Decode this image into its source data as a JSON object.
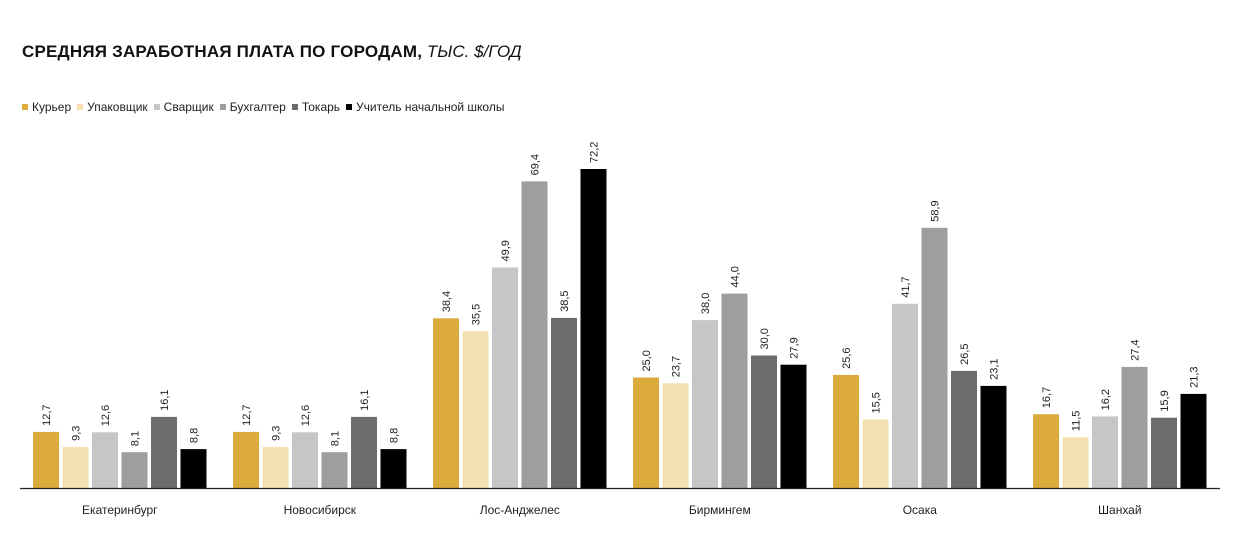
{
  "chart_data": {
    "type": "bar",
    "title": "СРЕДНЯЯ ЗАРАБОТНАЯ ПЛАТА ПО ГОРОДАМ,",
    "subtitle": "ТЫС. $/ГОД",
    "xlabel": "",
    "ylabel": "",
    "ylim": [
      0,
      72.2
    ],
    "grid": false,
    "legend_position": "top-left",
    "categories": [
      "Екатеринбург",
      "Новосибирск",
      "Лос-Анджелес",
      "Бирмингем",
      "Осака",
      "Шанхай"
    ],
    "series": [
      {
        "name": "Курьер",
        "color": "#dbab3e",
        "values": [
          12.7,
          12.7,
          38.4,
          25.0,
          25.6,
          16.7
        ],
        "labels": [
          "12,7",
          "12,7",
          "38,4",
          "25,0",
          "25,6",
          "16,7"
        ]
      },
      {
        "name": "Упаковщик",
        "color": "#f5e0b2",
        "values": [
          9.3,
          9.3,
          35.5,
          23.7,
          15.5,
          11.5
        ],
        "labels": [
          "9,3",
          "9,3",
          "35,5",
          "23,7",
          "15,5",
          "11,5"
        ]
      },
      {
        "name": "Сварщик",
        "color": "#c6c6c6",
        "values": [
          12.6,
          12.6,
          49.9,
          38.0,
          41.7,
          16.2
        ],
        "labels": [
          "12,6",
          "12,6",
          "49,9",
          "38,0",
          "41,7",
          "16,2"
        ]
      },
      {
        "name": "Бухгалтер",
        "color": "#9e9e9e",
        "values": [
          8.1,
          8.1,
          69.4,
          44.0,
          58.9,
          27.4
        ],
        "labels": [
          "8,1",
          "8,1",
          "69,4",
          "44,0",
          "58,9",
          "27,4"
        ]
      },
      {
        "name": "Токарь",
        "color": "#6c6c6c",
        "values": [
          16.1,
          16.1,
          38.5,
          30.0,
          26.5,
          15.9
        ],
        "labels": [
          "16,1",
          "16,1",
          "38,5",
          "30,0",
          "26,5",
          "15,9"
        ]
      },
      {
        "name": "Учитель начальной школы",
        "color": "#000000",
        "values": [
          8.8,
          8.8,
          72.2,
          27.9,
          23.1,
          21.3
        ],
        "labels": [
          "8,8",
          "8,8",
          "72,2",
          "27,9",
          "23,1",
          "21,3"
        ]
      }
    ]
  }
}
